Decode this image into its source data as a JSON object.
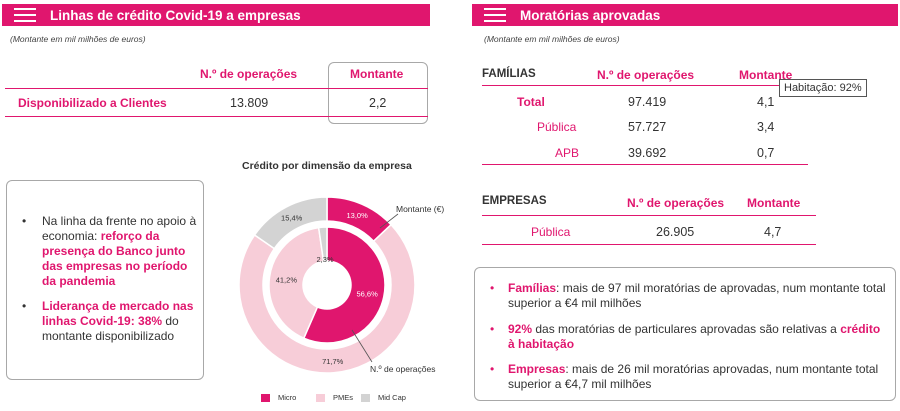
{
  "left": {
    "header": "Linhas de crédito Covid-19 a empresas",
    "unit": "(Montante em mil milhões de euros)",
    "table": {
      "col_operations": "N.º de operações",
      "col_amount": "Montante",
      "row_label": "Disponibilizado a Clientes",
      "row_operations": "13.809",
      "row_amount": "2,2"
    },
    "bullets": [
      {
        "plain": "Na linha da frente no apoio à economia: ",
        "highlight": "reforço da presença do Banco junto das empresas no período da pandemia"
      },
      {
        "highlight": "Liderança de mercado nas linhas Covid-19: 38%",
        "plain": " do montante disponibilizado"
      }
    ]
  },
  "chart_data": {
    "type": "pie",
    "title": "Crédito por dimensão da empresa",
    "categories": [
      "Micro",
      "PMEs",
      "Mid Cap"
    ],
    "series": [
      {
        "name": "Montante (€)",
        "values": [
          13.0,
          71.7,
          15.4
        ],
        "labels": [
          "13,0%",
          "71,7%",
          "15,4%"
        ]
      },
      {
        "name": "N.º de operações",
        "values": [
          56.6,
          41.2,
          2.3
        ],
        "labels": [
          "56,6%",
          "41,2%",
          "2,3%"
        ]
      }
    ],
    "colors": [
      "#e0166e",
      "#f7cdd8",
      "#d3d3d3"
    ],
    "legend_position": "bottom"
  },
  "right": {
    "header": "Moratórias aprovadas",
    "unit": "(Montante em mil milhões de euros)",
    "familias": {
      "title": "FAMÍLIAS",
      "col_operations": "N.º de operações",
      "col_amount": "Montante",
      "rows": [
        {
          "label": "Total",
          "operations": "97.419",
          "amount": "4,1"
        },
        {
          "label": "Pública",
          "operations": "57.727",
          "amount": "3,4"
        },
        {
          "label": "APB",
          "operations": "39.692",
          "amount": "0,7"
        }
      ],
      "callout": "Habitação: 92%"
    },
    "empresas": {
      "title": "EMPRESAS",
      "col_operations": "N.º de operações",
      "col_amount": "Montante",
      "rows": [
        {
          "label": "Pública",
          "operations": "26.905",
          "amount": "4,7"
        }
      ]
    },
    "bullets": [
      {
        "highlight": "Famílias",
        "plain": ": mais de 97 mil moratórias de aprovadas, num montante total superior a €4 mil milhões"
      },
      {
        "highlight": "92%",
        "plain": " das moratórias de particulares aprovadas são relativas a ",
        "highlight2": "crédito à habitação"
      },
      {
        "highlight": "Empresas",
        "plain": ": mais de 26 mil moratórias aprovadas, num montante total superior a €4,7 mil milhões"
      }
    ]
  }
}
